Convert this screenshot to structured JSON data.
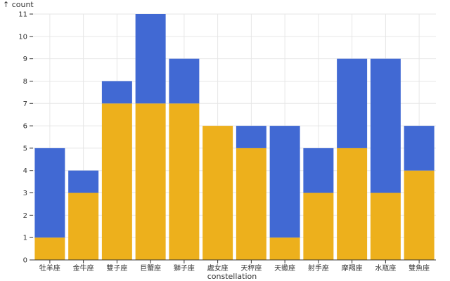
{
  "chart_data": {
    "type": "bar",
    "stacked": true,
    "xlabel": "constellation",
    "ylabel": "↑ count",
    "ylim": [
      0,
      11
    ],
    "yticks": [
      "0",
      "1",
      "2",
      "3",
      "4",
      "5",
      "6",
      "7",
      "8",
      "9",
      "10",
      "11"
    ],
    "grid": true,
    "categories": [
      "牡羊座",
      "金牛座",
      "雙子座",
      "巨蟹座",
      "獅子座",
      "處女座",
      "天秤座",
      "天蠍座",
      "射手座",
      "摩羯座",
      "水瓶座",
      "雙魚座"
    ],
    "series": [
      {
        "color": "#edb01c",
        "values": [
          1,
          3,
          7,
          7,
          7,
          6,
          5,
          1,
          3,
          5,
          3,
          4
        ]
      },
      {
        "color": "#4169d3",
        "values": [
          4,
          1,
          1,
          4,
          2,
          0,
          1,
          5,
          2,
          4,
          6,
          2
        ]
      }
    ]
  }
}
